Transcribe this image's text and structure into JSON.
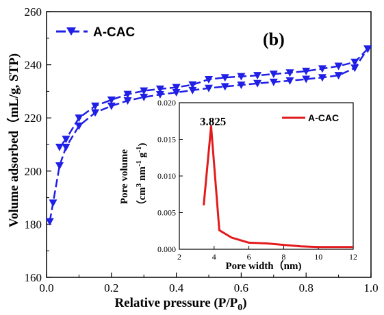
{
  "chart_data": [
    {
      "type": "line",
      "panel_label": "(b)",
      "xlabel": "Relative pressure (P/P0)",
      "xlabel_main": "Relative pressure (P/P",
      "xlabel_sub": "0",
      "xlabel_close": ")",
      "ylabel": "Volume adsorbed（mL/g,   STP)",
      "xlim": [
        0.0,
        1.0
      ],
      "ylim": [
        160,
        260
      ],
      "xticks": [
        "0.0",
        "0.2",
        "0.4",
        "0.6",
        "0.8",
        "1.0"
      ],
      "yticks": [
        "160",
        "180",
        "200",
        "220",
        "240",
        "260"
      ],
      "legend": "top-left",
      "grid": false,
      "color": "#1f1fe6",
      "series": [
        {
          "name": "A-CAC",
          "branch": "adsorption",
          "x": [
            0.01,
            0.02,
            0.04,
            0.06,
            0.1,
            0.15,
            0.2,
            0.25,
            0.3,
            0.35,
            0.4,
            0.45,
            0.5,
            0.55,
            0.6,
            0.65,
            0.7,
            0.75,
            0.8,
            0.85,
            0.9,
            0.95,
            0.99
          ],
          "y": [
            181,
            188,
            202,
            209,
            217,
            222,
            224.5,
            226.5,
            227.8,
            228.8,
            229.6,
            230.4,
            231.2,
            231.8,
            232.4,
            233.0,
            233.5,
            234.0,
            234.6,
            235.2,
            236.0,
            238.8,
            246
          ]
        },
        {
          "name": "A-CAC",
          "branch": "desorption",
          "x": [
            0.99,
            0.95,
            0.9,
            0.85,
            0.8,
            0.75,
            0.7,
            0.65,
            0.6,
            0.55,
            0.5,
            0.45,
            0.4,
            0.35,
            0.3,
            0.25,
            0.2,
            0.15,
            0.1,
            0.06,
            0.04
          ],
          "y": [
            246,
            241,
            239.5,
            238.5,
            237.6,
            237.0,
            236.5,
            236.0,
            235.6,
            235.2,
            234.5,
            232.5,
            231.5,
            230.9,
            230.2,
            228.9,
            226.8,
            224.5,
            220,
            212,
            209
          ]
        }
      ]
    },
    {
      "type": "line",
      "xlabel": "Pore width（nm)",
      "ylabel_line1": "Pore volume",
      "ylabel_line2_pre": "（cm",
      "ylabel_sup1": "3",
      "ylabel_mid": " nm",
      "ylabel_sup2": "-1",
      "ylabel_g": " g",
      "ylabel_sup3": "-1",
      "ylabel_close": ")",
      "xlim": [
        2,
        12
      ],
      "ylim": [
        0.0,
        0.02
      ],
      "xticks": [
        "2",
        "4",
        "6",
        "8",
        "10",
        "12"
      ],
      "yticks": [
        "0.000",
        "0.005",
        "0.010",
        "0.015",
        "0.020"
      ],
      "legend": "top-right",
      "annotation": "3.825",
      "color": "#e31a1c",
      "series": [
        {
          "name": "A-CAC",
          "x": [
            3.4,
            3.825,
            4.3,
            5.0,
            6.0,
            7.0,
            8.0,
            9.0,
            10.0,
            11.0,
            12.0
          ],
          "y": [
            0.006,
            0.0168,
            0.0026,
            0.0016,
            0.0009,
            0.0008,
            0.0006,
            0.0004,
            0.0003,
            0.0003,
            0.0003
          ]
        }
      ]
    }
  ]
}
